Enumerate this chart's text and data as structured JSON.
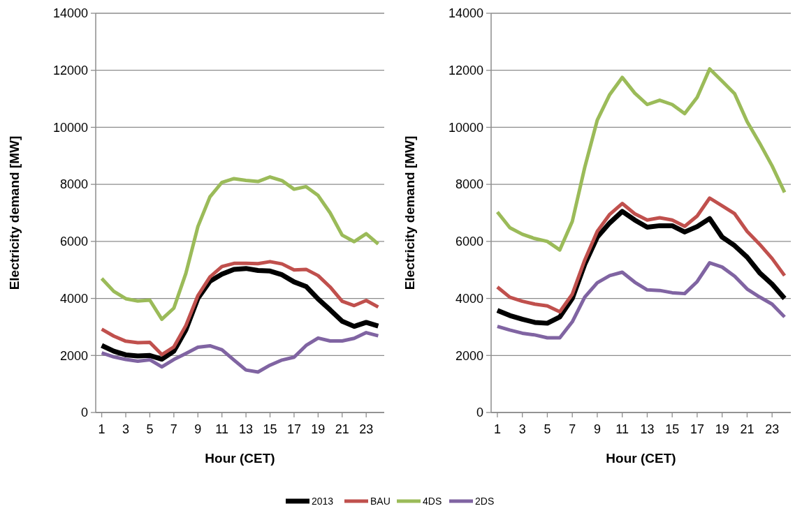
{
  "chart_data": [
    {
      "type": "line",
      "xlabel": "Hour (CET)",
      "ylabel": "Electricity demand [MW]",
      "x": [
        1,
        2,
        3,
        4,
        5,
        6,
        7,
        8,
        9,
        10,
        11,
        12,
        13,
        14,
        15,
        16,
        17,
        18,
        19,
        20,
        21,
        22,
        23,
        24
      ],
      "xlim": [
        0.5,
        24.5
      ],
      "xticks": [
        1,
        3,
        5,
        7,
        9,
        11,
        13,
        15,
        17,
        19,
        21,
        23
      ],
      "ylim": [
        0,
        14000
      ],
      "yticks": [
        0,
        2000,
        4000,
        6000,
        8000,
        10000,
        12000,
        14000
      ],
      "grid": "y",
      "legend": "bottom",
      "marker": "none",
      "series": [
        {
          "name": "2013",
          "color": "#000000",
          "values": [
            2350,
            2150,
            2020,
            1980,
            2000,
            1870,
            2150,
            2900,
            4000,
            4600,
            4850,
            5020,
            5050,
            4980,
            4960,
            4830,
            4580,
            4420,
            3980,
            3600,
            3200,
            3020,
            3160,
            3030
          ]
        },
        {
          "name": "BAU",
          "color": "#c0504d",
          "values": [
            2920,
            2680,
            2500,
            2450,
            2460,
            2030,
            2300,
            3050,
            4100,
            4750,
            5120,
            5230,
            5230,
            5220,
            5290,
            5210,
            5000,
            5020,
            4800,
            4400,
            3900,
            3750,
            3930,
            3700
          ]
        },
        {
          "name": "4DS",
          "color": "#9bbb59",
          "values": [
            4700,
            4250,
            3990,
            3910,
            3940,
            3270,
            3660,
            4880,
            6520,
            7560,
            8070,
            8200,
            8140,
            8100,
            8260,
            8130,
            7830,
            7920,
            7610,
            7000,
            6220,
            5990,
            6270,
            5910
          ]
        },
        {
          "name": "2DS",
          "color": "#8064a2",
          "values": [
            2090,
            1950,
            1860,
            1800,
            1850,
            1600,
            1860,
            2070,
            2290,
            2340,
            2200,
            1840,
            1490,
            1420,
            1660,
            1840,
            1940,
            2350,
            2610,
            2510,
            2510,
            2600,
            2800,
            2690
          ]
        }
      ]
    },
    {
      "type": "line",
      "xlabel": "Hour (CET)",
      "ylabel": "Electricity demand [MW]",
      "x": [
        1,
        2,
        3,
        4,
        5,
        6,
        7,
        8,
        9,
        10,
        11,
        12,
        13,
        14,
        15,
        16,
        17,
        18,
        19,
        20,
        21,
        22,
        23,
        24
      ],
      "xlim": [
        0.5,
        24.5
      ],
      "xticks": [
        1,
        3,
        5,
        7,
        9,
        11,
        13,
        15,
        17,
        19,
        21,
        23
      ],
      "ylim": [
        0,
        14000
      ],
      "yticks": [
        0,
        2000,
        4000,
        6000,
        8000,
        10000,
        12000,
        14000
      ],
      "grid": "y",
      "marker": "none",
      "series": [
        {
          "color": "#000000",
          "values": [
            3580,
            3400,
            3270,
            3160,
            3130,
            3350,
            4000,
            5200,
            6150,
            6650,
            7050,
            6750,
            6500,
            6550,
            6550,
            6330,
            6520,
            6800,
            6150,
            5850,
            5450,
            4900,
            4500,
            4000
          ]
        },
        {
          "color": "#c0504d",
          "values": [
            4400,
            4040,
            3900,
            3800,
            3740,
            3530,
            4150,
            5350,
            6350,
            6950,
            7330,
            6970,
            6750,
            6830,
            6750,
            6530,
            6890,
            7520,
            7250,
            6970,
            6350,
            5900,
            5400,
            4800
          ]
        },
        {
          "color": "#9bbb59",
          "values": [
            7030,
            6480,
            6250,
            6100,
            6000,
            5700,
            6700,
            8600,
            10250,
            11150,
            11750,
            11200,
            10800,
            10950,
            10800,
            10480,
            11050,
            12050,
            11620,
            11180,
            10200,
            9450,
            8650,
            7720
          ]
        },
        {
          "color": "#8064a2",
          "values": [
            3020,
            2890,
            2780,
            2720,
            2620,
            2620,
            3180,
            4050,
            4550,
            4800,
            4920,
            4570,
            4300,
            4280,
            4200,
            4170,
            4590,
            5250,
            5100,
            4780,
            4330,
            4050,
            3800,
            3350
          ]
        }
      ]
    }
  ]
}
